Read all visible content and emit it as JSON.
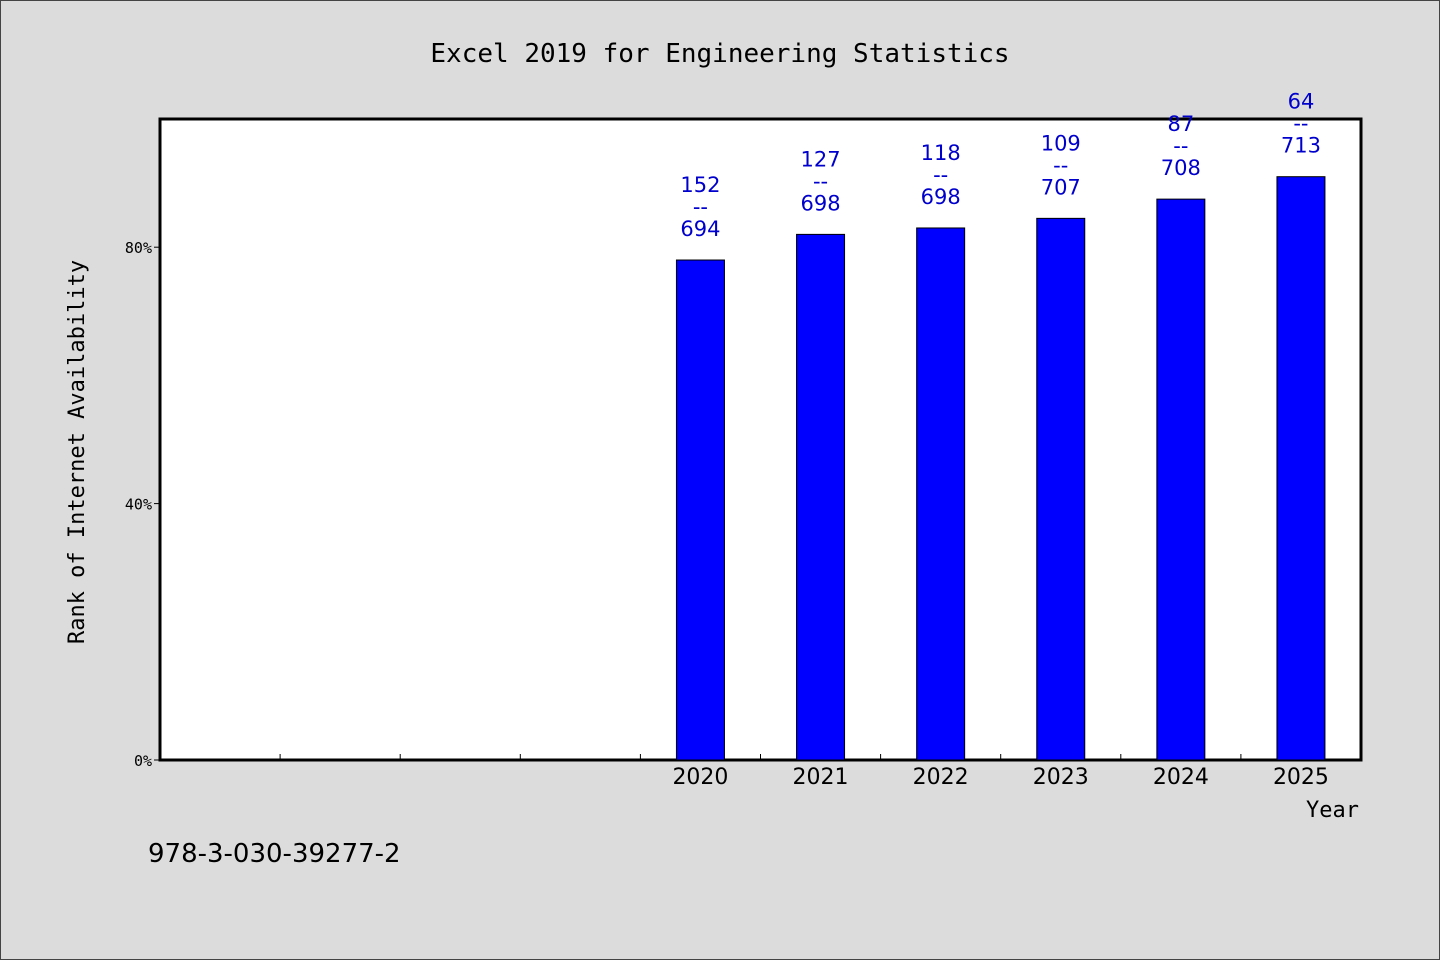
{
  "chart_data": {
    "type": "bar",
    "title": "Excel 2019 for Engineering Statistics",
    "xlabel": "Year",
    "ylabel": "Rank of Internet Availability",
    "categories": [
      "",
      "",
      "",
      "",
      "2020",
      "2021",
      "2022",
      "2023",
      "2024",
      "2025"
    ],
    "values": [
      null,
      null,
      null,
      null,
      78,
      82,
      83,
      84.5,
      87.5,
      91
    ],
    "ylim": [
      0,
      100
    ],
    "yticks": [
      0,
      40,
      80
    ],
    "ytick_labels": [
      "0%",
      "40%",
      "80%"
    ],
    "bar_labels": [
      null,
      null,
      null,
      null,
      {
        "top": "152",
        "sep": "--",
        "bottom": "694"
      },
      {
        "top": "127",
        "sep": "--",
        "bottom": "698"
      },
      {
        "top": "118",
        "sep": "--",
        "bottom": "698"
      },
      {
        "top": "109",
        "sep": "--",
        "bottom": "707"
      },
      {
        "top": "87",
        "sep": "--",
        "bottom": "708"
      },
      {
        "top": "64",
        "sep": "--",
        "bottom": "713"
      }
    ],
    "grid": false,
    "legend": "none",
    "bar_color": "#0000ff",
    "label_color": "#0000cc"
  },
  "footer_text": "978-3-030-39277-2"
}
